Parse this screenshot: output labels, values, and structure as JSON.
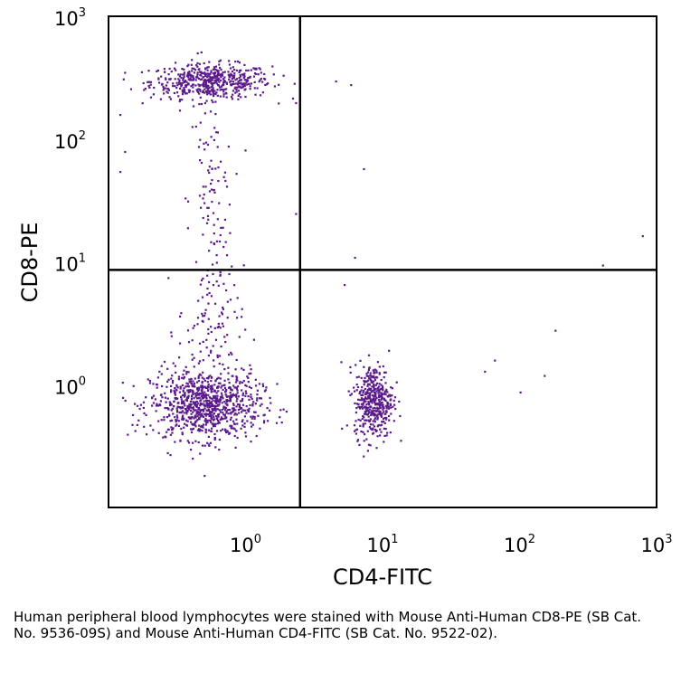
{
  "chart_data": {
    "type": "scatter",
    "title": "",
    "xlabel": "CD4-FITC",
    "ylabel": "CD8-PE",
    "x_scale": "log",
    "y_scale": "log",
    "xlim": [
      0.1,
      1000
    ],
    "ylim": [
      0.1,
      1000
    ],
    "x_ticks": [
      {
        "value": 1,
        "base": "10",
        "exp": "0"
      },
      {
        "value": 10,
        "base": "10",
        "exp": "1"
      },
      {
        "value": 100,
        "base": "10",
        "exp": "2"
      },
      {
        "value": 1000,
        "base": "10",
        "exp": "3"
      }
    ],
    "y_ticks": [
      {
        "value": 1,
        "base": "10",
        "exp": "0"
      },
      {
        "value": 10,
        "base": "10",
        "exp": "1"
      },
      {
        "value": 100,
        "base": "10",
        "exp": "2"
      },
      {
        "value": 1000,
        "base": "10",
        "exp": "3"
      }
    ],
    "quadrant_gates": {
      "x": 2.5,
      "y": 8.6
    },
    "point_color": "#5b1a8a",
    "populations": [
      {
        "x_center": 0.55,
        "y_center": 300,
        "x_spread_decades": 0.22,
        "y_spread_decades": 0.07,
        "count": 520
      },
      {
        "x_center": 0.55,
        "y_center": 30,
        "x_spread_decades": 0.08,
        "y_spread_decades": 0.55,
        "count": 110
      },
      {
        "x_center": 0.5,
        "y_center": 0.7,
        "x_spread_decades": 0.2,
        "y_spread_decades": 0.14,
        "count": 900
      },
      {
        "x_center": 0.55,
        "y_center": 3,
        "x_spread_decades": 0.12,
        "y_spread_decades": 0.25,
        "count": 90
      },
      {
        "x_center": 8.5,
        "y_center": 0.75,
        "x_spread_decades": 0.07,
        "y_spread_decades": 0.15,
        "count": 430
      }
    ],
    "sparse_points": [
      [
        4.5,
        300
      ],
      [
        5.8,
        280
      ],
      [
        7.2,
        58
      ],
      [
        6.2,
        11
      ],
      [
        780,
        16.5
      ],
      [
        400,
        9.5
      ],
      [
        180,
        2.8
      ],
      [
        65,
        1.6
      ],
      [
        55,
        1.3
      ],
      [
        150,
        1.2
      ],
      [
        100,
        0.88
      ],
      [
        5.2,
        6.6
      ],
      [
        2.3,
        25
      ],
      [
        2.3,
        200
      ],
      [
        0.12,
        160
      ],
      [
        0.13,
        80
      ],
      [
        0.12,
        55
      ]
    ]
  },
  "caption": "Human peripheral blood lymphocytes were stained with Mouse Anti-Human CD8-PE (SB Cat. No. 9536-09S) and Mouse Anti-Human CD4-FITC (SB Cat. No. 9522-02)."
}
